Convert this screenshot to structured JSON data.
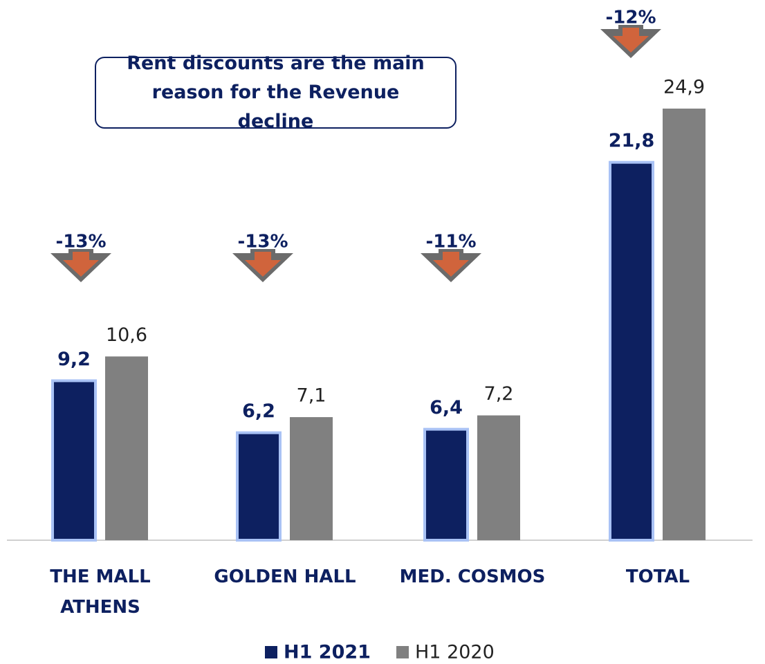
{
  "chart_data": {
    "type": "bar",
    "annotation": "Rent discounts are the main reason for the Revenue decline",
    "categories": [
      "THE MALL\nATHENS",
      "GOLDEN HALL",
      "MED. COSMOS",
      "TOTAL"
    ],
    "series": [
      {
        "name": "H1 2021",
        "color": "#0d2060",
        "values": [
          9.2,
          6.2,
          6.4,
          21.8
        ],
        "value_labels": [
          "9,2",
          "6,2",
          "6,4",
          "21,8"
        ]
      },
      {
        "name": "H1 2020",
        "color": "#808080",
        "values": [
          10.6,
          7.1,
          7.2,
          24.9
        ],
        "value_labels": [
          "10,6",
          "7,1",
          "7,2",
          "24,9"
        ]
      }
    ],
    "change_labels": [
      "-13%",
      "-13%",
      "-11%",
      "-12%"
    ],
    "legend": "bottom"
  }
}
